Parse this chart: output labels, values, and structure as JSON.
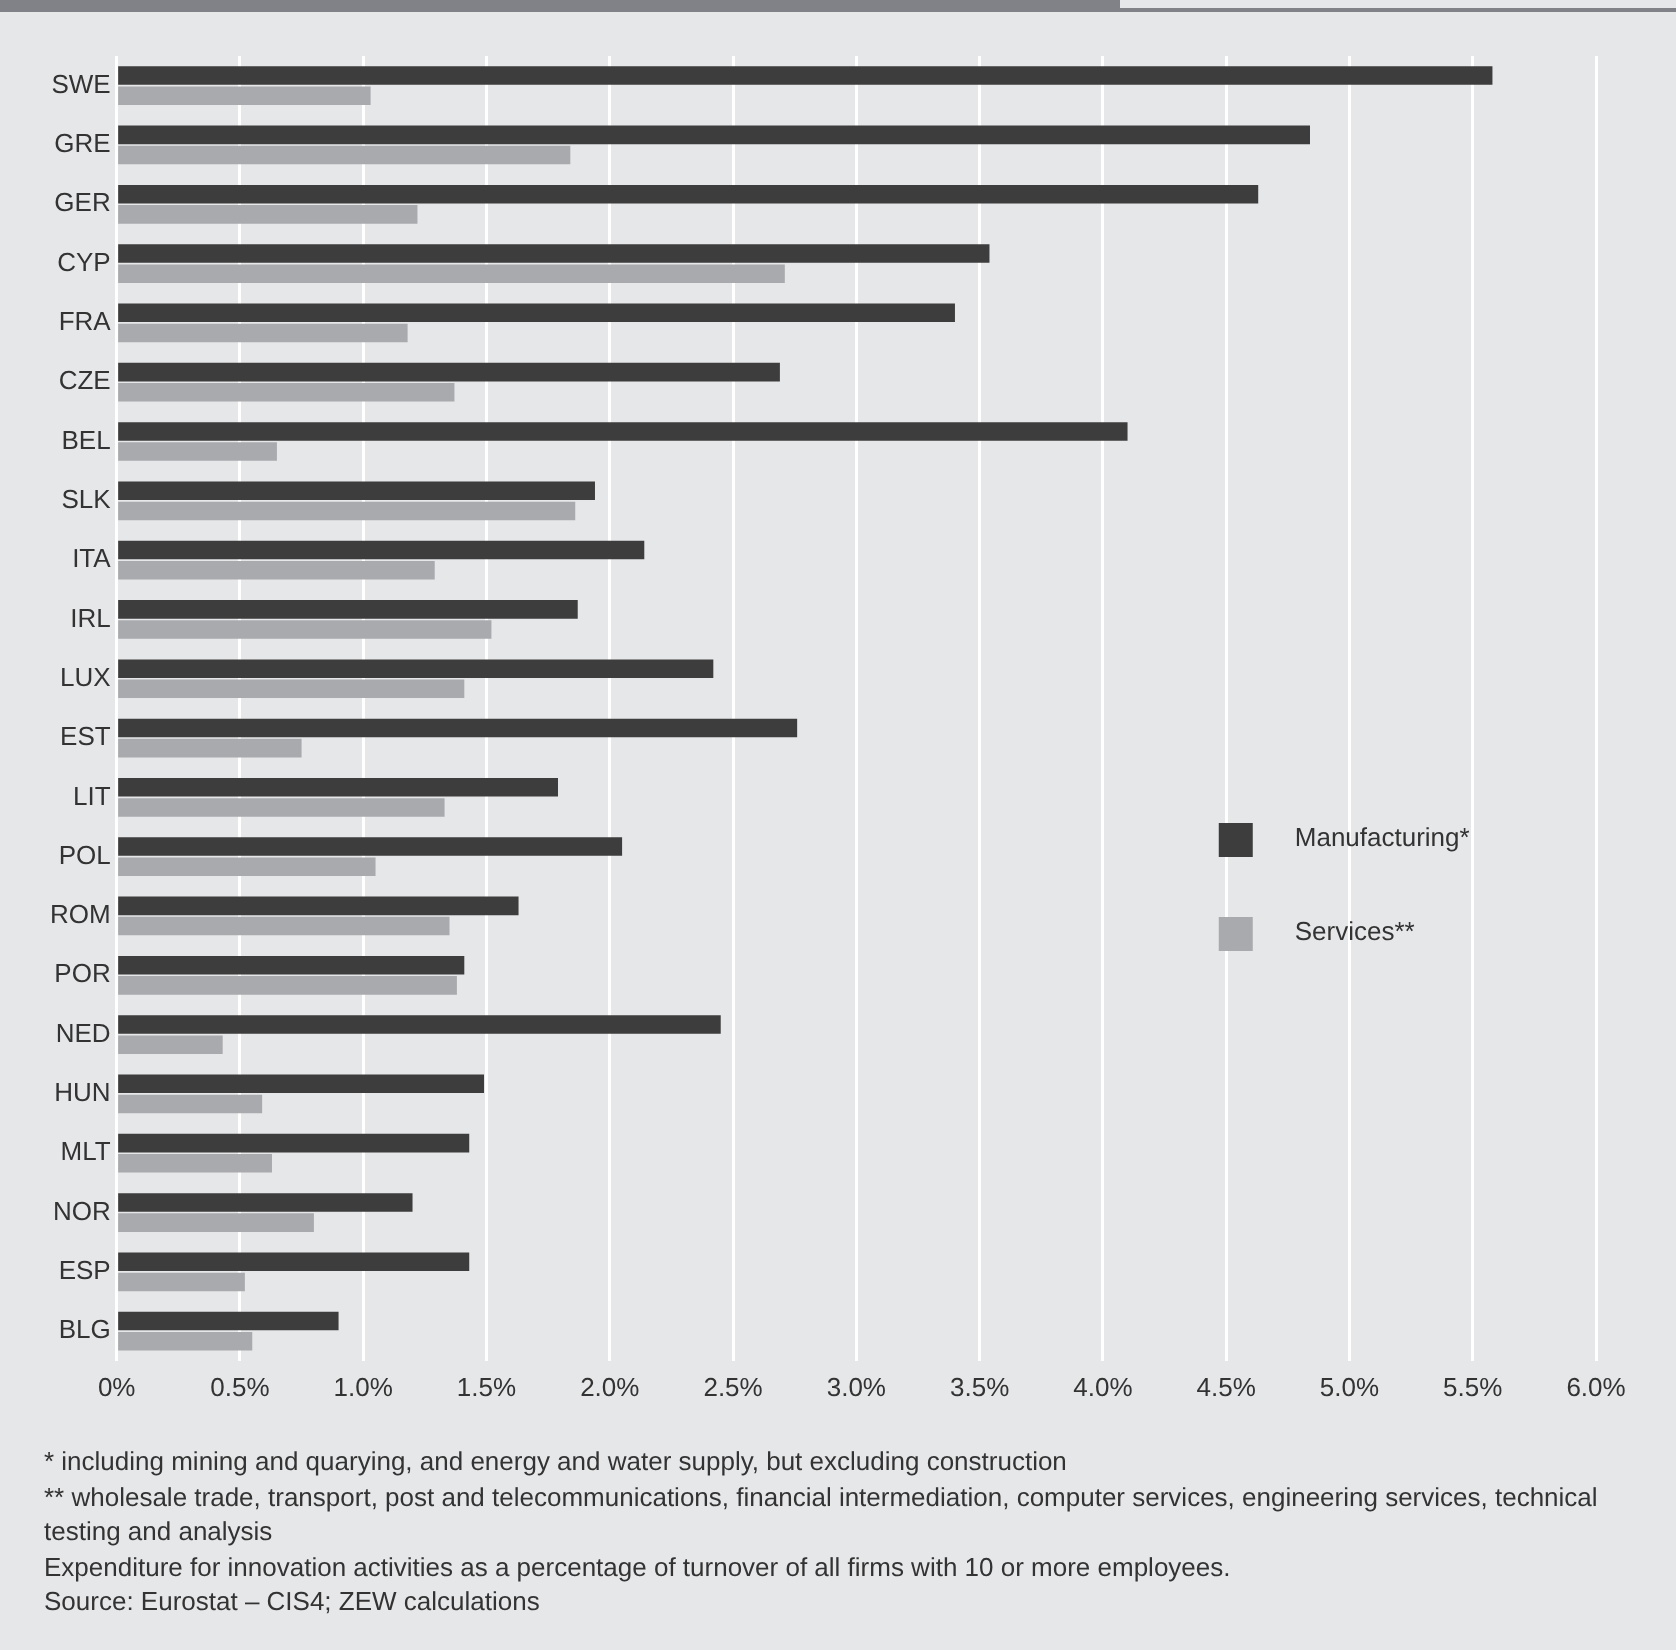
{
  "chart_data": {
    "type": "bar",
    "orientation": "horizontal",
    "categories": [
      "SWE",
      "GRE",
      "GER",
      "CYP",
      "FRA",
      "CZE",
      "BEL",
      "SLK",
      "ITA",
      "IRL",
      "LUX",
      "EST",
      "LIT",
      "POL",
      "ROM",
      "POR",
      "NED",
      "HUN",
      "MLT",
      "NOR",
      "ESP",
      "BLG"
    ],
    "series": [
      {
        "name": "Manufacturing*",
        "color": "#3d3d3d",
        "values": [
          5.58,
          4.84,
          4.63,
          3.54,
          3.4,
          2.69,
          4.1,
          1.94,
          2.14,
          1.87,
          2.42,
          2.76,
          1.79,
          2.05,
          1.63,
          1.41,
          2.45,
          1.49,
          1.43,
          1.2,
          1.43,
          0.9
        ]
      },
      {
        "name": "Services**",
        "color": "#a9aaad",
        "values": [
          1.03,
          1.84,
          1.22,
          2.71,
          1.18,
          1.37,
          0.65,
          1.86,
          1.29,
          1.52,
          1.41,
          0.75,
          1.33,
          1.05,
          1.35,
          1.38,
          0.43,
          0.59,
          0.63,
          0.8,
          0.52,
          0.55
        ]
      }
    ],
    "xlim": [
      0,
      6
    ],
    "xticks": [
      {
        "value": 0,
        "label": "0%"
      },
      {
        "value": 0.5,
        "label": "0.5%"
      },
      {
        "value": 1,
        "label": "1.0%"
      },
      {
        "value": 1.5,
        "label": "1.5%"
      },
      {
        "value": 2,
        "label": "2.0%"
      },
      {
        "value": 2.5,
        "label": "2.5%"
      },
      {
        "value": 3,
        "label": "3.0%"
      },
      {
        "value": 3.5,
        "label": "3.5%"
      },
      {
        "value": 4,
        "label": "4.0%"
      },
      {
        "value": 4.5,
        "label": "4.5%"
      },
      {
        "value": 5,
        "label": "5.0%"
      },
      {
        "value": 5.5,
        "label": "5.5%"
      },
      {
        "value": 6,
        "label": "6.0%"
      }
    ],
    "grid": "x",
    "legend": "right",
    "annotations": [
      "* including mining and quarying, and energy and water supply, but excluding construction",
      "** wholesale trade, transport, post and telecommunications, financial intermediation, computer services, engineering services, technical testing and analysis",
      "Expenditure for innovation activities as a percentage of turnover of all firms with 10 or more employees.",
      "Source: Eurostat – CIS4; ZEW calculations"
    ]
  }
}
